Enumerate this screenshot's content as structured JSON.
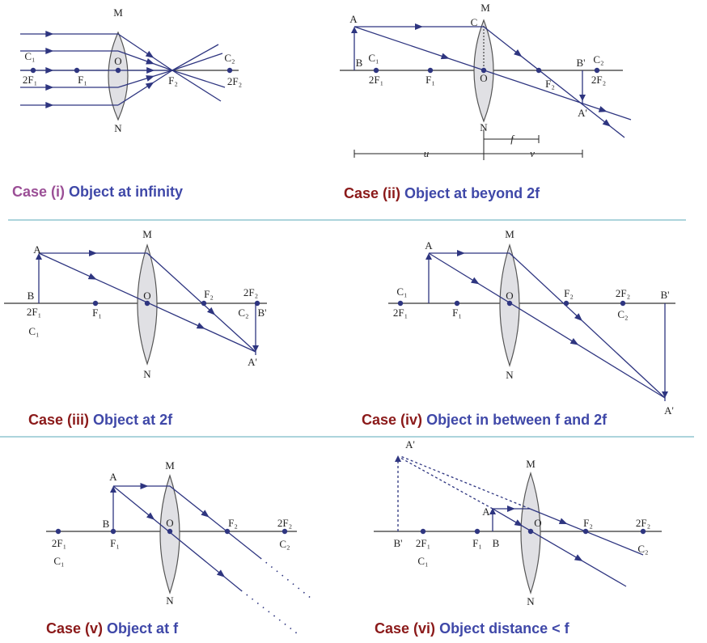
{
  "colors": {
    "ray": "#2e3580",
    "caption_case_red": "#8b1a1a",
    "caption_case_purple": "#9b4f96",
    "caption_text": "#3f48a8",
    "divider": "#5aaab8"
  },
  "panels": [
    {
      "case": "Case (i)",
      "title": "Object at infinity",
      "labels": {
        "M": "M",
        "N": "N",
        "O": "O",
        "C1": "C₁",
        "2F1": "2F₁",
        "F1": "F₁",
        "F2": "F₂",
        "C2": "C₂",
        "2F2": "2F₂"
      }
    },
    {
      "case": "Case (ii)",
      "title": "Object at beyond 2f",
      "labels": {
        "A": "A",
        "M": "M",
        "C": "C",
        "N": "N",
        "B": "B",
        "C1": "C₁",
        "2F1": "2F₁",
        "F1": "F₁",
        "O": "O",
        "F2": "F₂",
        "B'": "B'",
        "C2": "C₂",
        "2F2": "2F₂",
        "A'": "A'",
        "f": "f",
        "u": "u",
        "v": "v"
      }
    },
    {
      "case": "Case (iii)",
      "title": "Object at 2f",
      "labels": {
        "A": "A",
        "B": "B",
        "2F1": "2F₁",
        "C1": "C₁",
        "F1": "F₁",
        "O": "O",
        "M": "M",
        "N": "N",
        "F2": "F₂",
        "2F2": "2F₂",
        "C2": "C₂",
        "B'": "B'",
        "A'": "A'"
      }
    },
    {
      "case": "Case (iv)",
      "title": "Object in between f and 2f",
      "labels": {
        "A": "A",
        "C1": "C₁",
        "2F1": "2F₁",
        "F1": "F₁",
        "O": "O",
        "M": "M",
        "N": "N",
        "F2": "F₂",
        "2F2": "2F₂",
        "C2": "C₂",
        "B'": "B'",
        "A'": "A'"
      }
    },
    {
      "case": "Case (v)",
      "title": "Object at f",
      "labels": {
        "A": "A",
        "M": "M",
        "N": "N",
        "B": "B",
        "2F1": "2F₁",
        "C1": "C₁",
        "F1": "F₁",
        "O": "O",
        "F2": "F₂",
        "2F2": "2F₂",
        "C2": "C₂"
      }
    },
    {
      "case": "Case (vi)",
      "title": "Object distance < f",
      "labels": {
        "A'": "A'",
        "M": "M",
        "N": "N",
        "A": "A",
        "B'": "B'",
        "2F1": "2F₁",
        "C1": "C₁",
        "F1": "F₁",
        "B": "B",
        "O": "O",
        "F2": "F₂",
        "2F2": "2F₂",
        "C2": "C₂"
      }
    }
  ]
}
